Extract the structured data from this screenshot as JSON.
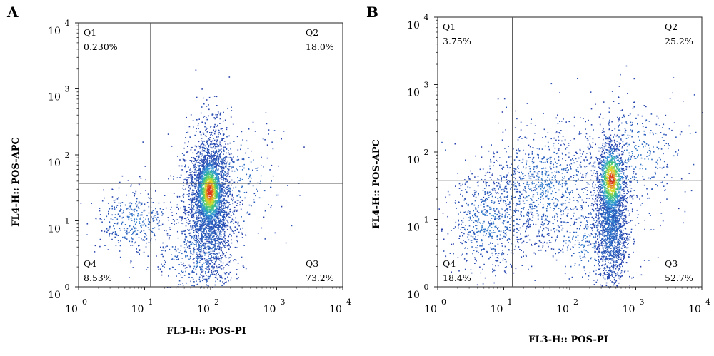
{
  "chart_data": [
    {
      "type": "scatter",
      "panel": "A",
      "xlabel": "FL3-H:: POS-PI",
      "ylabel": "FL4-H:: POS-APC",
      "xscale": "log",
      "yscale": "log",
      "xlim": [
        1,
        10000
      ],
      "ylim": [
        1,
        10000
      ],
      "x_ticks": [
        {
          "base": "10",
          "exp": "0"
        },
        {
          "base": "10",
          "exp": "1"
        },
        {
          "base": "10",
          "exp": "2"
        },
        {
          "base": "10",
          "exp": "3"
        },
        {
          "base": "10",
          "exp": "4"
        }
      ],
      "y_ticks": [
        {
          "base": "10",
          "exp": "0"
        },
        {
          "base": "10",
          "exp": "1"
        },
        {
          "base": "10",
          "exp": "2"
        },
        {
          "base": "10",
          "exp": "3"
        },
        {
          "base": "10",
          "exp": "4"
        }
      ],
      "gate": {
        "x": 12.3,
        "y": 37
      },
      "quadrants": [
        {
          "name": "Q1",
          "percent": "0.230%",
          "position": "top-left"
        },
        {
          "name": "Q2",
          "percent": "18.0%",
          "position": "top-right"
        },
        {
          "name": "Q3",
          "percent": "73.2%",
          "position": "bottom-right"
        },
        {
          "name": "Q4",
          "percent": "8.53%",
          "position": "bottom-left"
        }
      ],
      "clusters": [
        {
          "cx": 95,
          "cy": 20,
          "sx": 0.18,
          "sy": 0.55,
          "n": 2600
        },
        {
          "cx": 95,
          "cy": 30,
          "sx": 0.1,
          "sy": 0.25,
          "n": 900
        },
        {
          "cx": 7,
          "cy": 10,
          "sx": 0.3,
          "sy": 0.25,
          "n": 380
        },
        {
          "cx": 60,
          "cy": 3,
          "sx": 0.35,
          "sy": 0.35,
          "n": 350
        },
        {
          "cx": 180,
          "cy": 40,
          "sx": 0.45,
          "sy": 0.5,
          "n": 250
        }
      ],
      "hot_spot": {
        "x": 95,
        "y": 28
      }
    },
    {
      "type": "scatter",
      "panel": "B",
      "xlabel": "FL3-H:: POS-PI",
      "ylabel": "FL4-H:: POS-APC",
      "xscale": "log",
      "yscale": "log",
      "xlim": [
        1,
        10000
      ],
      "ylim": [
        1,
        10000
      ],
      "x_ticks": [
        {
          "base": "10",
          "exp": "0"
        },
        {
          "base": "10",
          "exp": "1"
        },
        {
          "base": "10",
          "exp": "2"
        },
        {
          "base": "10",
          "exp": "3"
        },
        {
          "base": "10",
          "exp": "4"
        }
      ],
      "y_ticks": [
        {
          "base": "10",
          "exp": "0"
        },
        {
          "base": "10",
          "exp": "1"
        },
        {
          "base": "10",
          "exp": "2"
        },
        {
          "base": "10",
          "exp": "3"
        },
        {
          "base": "10",
          "exp": "4"
        }
      ],
      "gate": {
        "x": 13.5,
        "y": 38
      },
      "quadrants": [
        {
          "name": "Q1",
          "percent": "3.75%",
          "position": "top-left"
        },
        {
          "name": "Q2",
          "percent": "25.2%",
          "position": "top-right"
        },
        {
          "name": "Q3",
          "percent": "52.7%",
          "position": "bottom-right"
        },
        {
          "name": "Q4",
          "percent": "18.4%",
          "position": "bottom-left"
        }
      ],
      "clusters": [
        {
          "cx": 420,
          "cy": 12,
          "sx": 0.12,
          "sy": 0.55,
          "n": 1900
        },
        {
          "cx": 420,
          "cy": 35,
          "sx": 0.1,
          "sy": 0.3,
          "n": 500
        },
        {
          "cx": 6,
          "cy": 10,
          "sx": 0.35,
          "sy": 0.4,
          "n": 650
        },
        {
          "cx": 40,
          "cy": 30,
          "sx": 0.45,
          "sy": 0.45,
          "n": 900
        },
        {
          "cx": 800,
          "cy": 90,
          "sx": 0.45,
          "sy": 0.45,
          "n": 400
        },
        {
          "cx": 200,
          "cy": 5,
          "sx": 0.4,
          "sy": 0.35,
          "n": 300
        }
      ],
      "hot_spot": {
        "x": 420,
        "y": 40
      }
    }
  ]
}
